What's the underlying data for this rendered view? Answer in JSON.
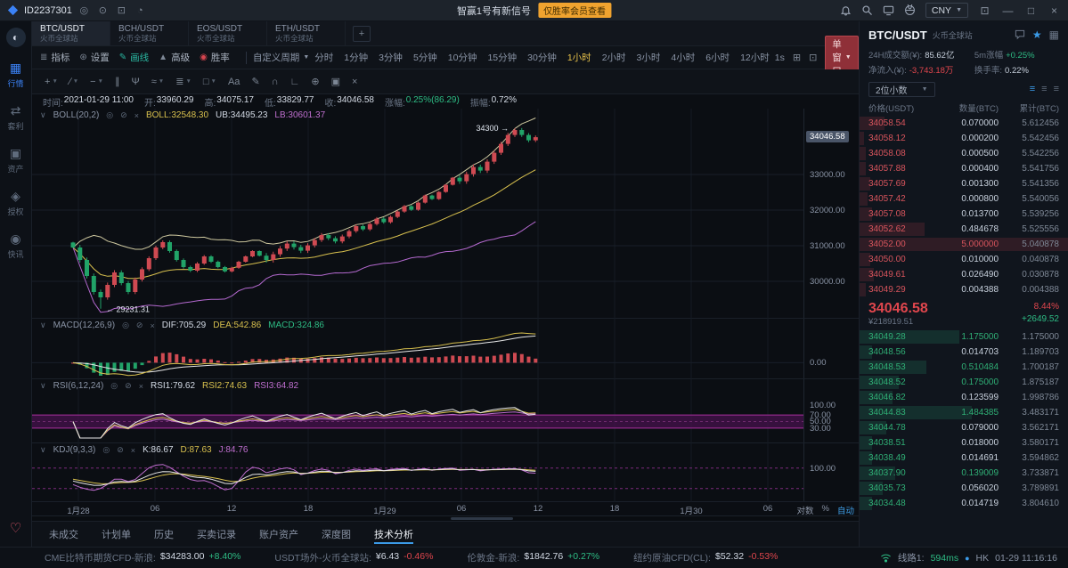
{
  "topbar": {
    "id": "ID2237301",
    "signal_text": "智赢1号有新信号",
    "signal_badge": "仅胜率会员查看",
    "currency": "CNY"
  },
  "sidebar": {
    "items": [
      {
        "label": "行情",
        "active": true
      },
      {
        "label": "套利"
      },
      {
        "label": "资产"
      },
      {
        "label": "授权"
      },
      {
        "label": "快讯"
      }
    ]
  },
  "pair_tabs": [
    {
      "pair": "BTC/USDT",
      "exchange": "火币全球站",
      "active": true
    },
    {
      "pair": "BCH/USDT",
      "exchange": "火币全球站"
    },
    {
      "pair": "EOS/USDT",
      "exchange": "火币全球站"
    },
    {
      "pair": "ETH/USDT",
      "exchange": "火币全球站"
    }
  ],
  "toolbar": {
    "tools": [
      "指标",
      "设置",
      "画线",
      "高级",
      "胜率"
    ],
    "custom_period": "自定义周期",
    "periods": [
      "分时",
      "1分钟",
      "3分钟",
      "5分钟",
      "10分钟",
      "15分钟",
      "30分钟",
      "1小时",
      "2小时",
      "3小时",
      "4小时",
      "6小时",
      "12小时"
    ],
    "active_period": "1小时",
    "seconds": "1s",
    "window_mode": "单窗口"
  },
  "info_line": [
    {
      "label": "时间:",
      "value": "2021-01-29 11:00"
    },
    {
      "label": "开:",
      "value": "33960.29"
    },
    {
      "label": "高:",
      "value": "34075.17"
    },
    {
      "label": "低:",
      "value": "33829.77"
    },
    {
      "label": "收:",
      "value": "34046.58"
    },
    {
      "label": "涨幅:",
      "value": "0.25%(86.29)",
      "c": "g"
    },
    {
      "label": "振幅:",
      "value": "0.72%"
    }
  ],
  "indicators": {
    "boll": {
      "name": "BOLL(20,2)",
      "values": [
        {
          "t": "BOLL:32548.30",
          "c": "y"
        },
        {
          "t": "UB:34495.23",
          "c": "w"
        },
        {
          "t": "LB:30601.37",
          "c": "p"
        }
      ]
    },
    "macd": {
      "name": "MACD(12,26,9)",
      "values": [
        {
          "t": "DIF:705.29",
          "c": "w"
        },
        {
          "t": "DEA:542.86",
          "c": "y"
        },
        {
          "t": "MACD:324.86",
          "c": "g"
        }
      ]
    },
    "rsi": {
      "name": "RSI(6,12,24)",
      "values": [
        {
          "t": "RSI1:79.62",
          "c": "w"
        },
        {
          "t": "RSI2:74.63",
          "c": "y"
        },
        {
          "t": "RSI3:64.82",
          "c": "p"
        }
      ]
    },
    "kdj": {
      "name": "KDJ(9,3,3)",
      "values": [
        {
          "t": "K:86.67",
          "c": "w"
        },
        {
          "t": "D:87.63",
          "c": "y"
        },
        {
          "t": "J:84.76",
          "c": "p"
        }
      ]
    }
  },
  "chart_data": {
    "type": "candlestick",
    "period": "1小时",
    "x_labels": [
      "1月28",
      "06",
      "12",
      "18",
      "1月29",
      "06",
      "12",
      "18",
      "1月30",
      "06"
    ],
    "main": {
      "closes": [
        30950,
        30600,
        30150,
        29700,
        29550,
        29900,
        30250,
        29950,
        29700,
        30050,
        30341,
        30650,
        30950,
        31100,
        30850,
        30600,
        30400,
        30300,
        30500,
        30700,
        30550,
        30400,
        30280,
        30380,
        30550,
        30700,
        30850,
        30720,
        30600,
        30760,
        30920,
        31060,
        30960,
        30860,
        31010,
        31160,
        31300,
        31210,
        31120,
        31260,
        31410,
        31550,
        31460,
        31610,
        31760,
        31660,
        31810,
        31960,
        32110,
        32010,
        32210,
        32410,
        32310,
        32510,
        32710,
        32910,
        32810,
        33010,
        33210,
        33110,
        33360,
        33610,
        33860,
        34110,
        34250,
        34110,
        33960,
        34046.58
      ],
      "low_index": 4,
      "low_value": 29231.31,
      "low_label": "← 29231.31",
      "high_index": 64,
      "high_value": 34300,
      "high_label": "34300 →",
      "y_range": [
        28950,
        34850
      ],
      "y_ticks": [
        {
          "v": 33000,
          "t": "33000.00"
        },
        {
          "v": 32000,
          "t": "32000.00"
        },
        {
          "v": 31000,
          "t": "31000.00"
        },
        {
          "v": 30000,
          "t": "30000.00"
        }
      ],
      "last_price": 34046.58,
      "last_price_label": "34046.58",
      "overlay": "BOLL(20,2)"
    },
    "macd": {
      "zero_label": "0.00"
    },
    "rsi": {
      "ticks": [
        {
          "v": 100,
          "t": "100.00"
        },
        {
          "v": 70,
          "t": "70.00"
        },
        {
          "v": 50,
          "t": "50.00"
        },
        {
          "v": 30,
          "t": "30.00"
        }
      ],
      "band": [
        30,
        70
      ]
    },
    "kdj": {
      "ticks": [
        {
          "v": 100,
          "t": "100.00"
        }
      ]
    },
    "axis_controls": {
      "log": "对数",
      "pct": "%",
      "auto": "自动"
    }
  },
  "bottom_tabs": [
    "未成交",
    "计划单",
    "历史",
    "买卖记录",
    "账户资产",
    "深度图",
    "技术分析"
  ],
  "active_bottom_tab": "技术分析",
  "ticker_bar": [
    {
      "label": "CME比特币期货CFD-新浪:",
      "price": "$34283.00",
      "change": "+8.40%",
      "dir": "up"
    },
    {
      "label": "USDT场外-火币全球站:",
      "price": "¥6.43",
      "change": "-0.46%",
      "dir": "down"
    },
    {
      "label": "伦敦金-新浪:",
      "price": "$1842.76",
      "change": "+0.27%",
      "dir": "up"
    },
    {
      "label": "纽约原油CFD(CL):",
      "price": "$52.32",
      "change": "-0.53%",
      "dir": "down"
    }
  ],
  "connection": {
    "line_label": "线路1:",
    "latency": "594ms",
    "location": "HK",
    "time": "01-29 11:16:16"
  },
  "order_book": {
    "pair": "BTC/USDT",
    "exchange": "火币全球站",
    "stats": [
      {
        "label": "24H成交额(¥):",
        "value": "85.62亿",
        "c": "w"
      },
      {
        "label": "5m涨幅",
        "value": "+0.25%",
        "c": "g"
      },
      {
        "label": "净流入(¥):",
        "value": "-3,743.18万",
        "c": "r"
      },
      {
        "label": "换手率:",
        "value": "0.22%",
        "c": "w"
      }
    ],
    "precision": "2位小数",
    "columns": [
      "价格(USDT)",
      "数量(BTC)",
      "累计(BTC)"
    ],
    "asks": [
      {
        "price": "34058.54",
        "qty": "0.070000",
        "total": "5.612456",
        "depth": 12
      },
      {
        "price": "34058.12",
        "qty": "0.000200",
        "total": "5.542456",
        "depth": 2
      },
      {
        "price": "34058.08",
        "qty": "0.000500",
        "total": "5.542256",
        "depth": 3
      },
      {
        "price": "34057.88",
        "qty": "0.000400",
        "total": "5.541756",
        "depth": 3
      },
      {
        "price": "34057.69",
        "qty": "0.001300",
        "total": "5.541356",
        "depth": 5
      },
      {
        "price": "34057.42",
        "qty": "0.000800",
        "total": "5.540056",
        "depth": 4
      },
      {
        "price": "34057.08",
        "qty": "0.013700",
        "total": "5.539256",
        "depth": 6
      },
      {
        "price": "34052.62",
        "qty": "0.484678",
        "total": "5.525556",
        "depth": 31
      },
      {
        "price": "34052.00",
        "qty": "5.000000",
        "total": "5.040878",
        "depth": 100,
        "hl": true
      },
      {
        "price": "34050.00",
        "qty": "0.010000",
        "total": "0.040878",
        "depth": 5
      },
      {
        "price": "34049.61",
        "qty": "0.026490",
        "total": "0.030878",
        "depth": 7
      },
      {
        "price": "34049.29",
        "qty": "0.004388",
        "total": "0.004388",
        "depth": 3
      }
    ],
    "last": {
      "price": "34046.58",
      "pct": "8.44%",
      "cny": "¥218919.51",
      "change": "+2649.52"
    },
    "bids": [
      {
        "price": "34049.28",
        "qty": "1.175000",
        "total": "1.175000",
        "depth": 48,
        "hl": true
      },
      {
        "price": "34048.56",
        "qty": "0.014703",
        "total": "1.189703",
        "depth": 6
      },
      {
        "price": "34048.53",
        "qty": "0.510484",
        "total": "1.700187",
        "depth": 32,
        "hl": true
      },
      {
        "price": "34048.52",
        "qty": "0.175000",
        "total": "1.875187",
        "depth": 19,
        "hl": true
      },
      {
        "price": "34046.82",
        "qty": "0.123599",
        "total": "1.998786",
        "depth": 16
      },
      {
        "price": "34044.83",
        "qty": "1.484385",
        "total": "3.483171",
        "depth": 54,
        "hl": true
      },
      {
        "price": "34044.78",
        "qty": "0.079000",
        "total": "3.562171",
        "depth": 13
      },
      {
        "price": "34038.51",
        "qty": "0.018000",
        "total": "3.580171",
        "depth": 6
      },
      {
        "price": "34038.49",
        "qty": "0.014691",
        "total": "3.594862",
        "depth": 6
      },
      {
        "price": "34037.90",
        "qty": "0.139009",
        "total": "3.733871",
        "depth": 17,
        "hl": true
      },
      {
        "price": "34035.73",
        "qty": "0.056020",
        "total": "3.789891",
        "depth": 11
      },
      {
        "price": "34034.48",
        "qty": "0.014719",
        "total": "3.804610",
        "depth": 6
      }
    ]
  }
}
